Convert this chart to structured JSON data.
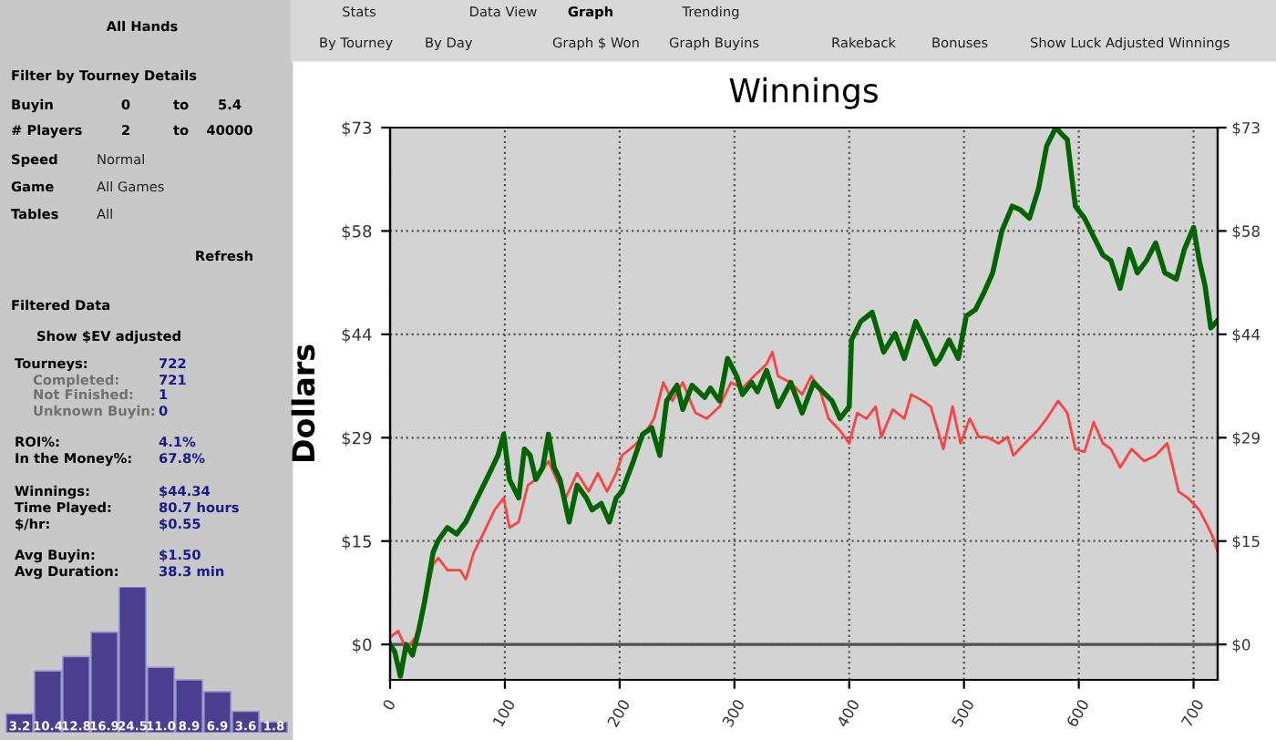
{
  "chart_data": [
    {
      "type": "other",
      "annotations": [
        "All Hands",
        "Filter by Tourney Details",
        "Buyin",
        "0",
        "to",
        "5.4",
        "# Players",
        "2",
        "to",
        "40000",
        "Speed",
        "Normal",
        "Game",
        "All Games",
        "Tables",
        "All",
        "Refresh",
        "Filtered Data",
        "Show $EV adjusted",
        "Tourneys:",
        "722",
        "Completed:",
        "721",
        "Not Finished:",
        "1",
        "Unknown Buyin:",
        "0",
        "ROI%:",
        "4.1%",
        "In the Money%:",
        "67.8%",
        "Winnings:",
        "$44.34",
        "Time Played:",
        "80.7 hours",
        "$/hr:",
        "$0.55",
        "Avg Buyin:",
        "$1.50",
        "Avg Duration:",
        "38.3 min"
      ]
    },
    {
      "type": "other",
      "annotations": [
        "Stats",
        "Data View",
        "Graph",
        "Trending",
        "By Tourney",
        "By Day",
        "Graph $ Won",
        "Graph Buyins",
        "Rakeback",
        "Bonuses",
        "Show Luck Adjusted Winnings"
      ]
    },
    {
      "type": "line",
      "title": "Winnings",
      "ylabel": "Dollars",
      "xlim": [
        0,
        721
      ],
      "ylim": [
        -5,
        73
      ],
      "xticks": [
        0,
        100,
        200,
        300,
        400,
        500,
        600,
        700
      ],
      "yticks": [
        {
          "value": 0,
          "label": "$0"
        },
        {
          "value": 14.6,
          "label": "$15"
        },
        {
          "value": 29.2,
          "label": "$29"
        },
        {
          "value": 43.8,
          "label": "$44"
        },
        {
          "value": 58.4,
          "label": "$58"
        },
        {
          "value": 73,
          "label": "$73"
        }
      ],
      "y2lim": [
        -5,
        73
      ],
      "y2ticks": [
        {
          "value": 0,
          "label": "$0"
        },
        {
          "value": 14.6,
          "label": "$15"
        },
        {
          "value": 29.2,
          "label": "$29"
        },
        {
          "value": 43.8,
          "label": "$44"
        },
        {
          "value": 58.4,
          "label": "$58"
        },
        {
          "value": 73,
          "label": "$73"
        }
      ],
      "grid": true,
      "legend": false,
      "marker": "none",
      "line_style": "solid",
      "ref_lines": [
        {
          "axis": "y",
          "value": 0,
          "color": "#505050",
          "line_style": "solid"
        }
      ],
      "series": [
        {
          "color": "#ff4040",
          "x": [
            0,
            7,
            14,
            22,
            32,
            37.5,
            42,
            50,
            61,
            66,
            73,
            81,
            91,
            99,
            104,
            112,
            120,
            127,
            138,
            145,
            153,
            163,
            173,
            181,
            189,
            197,
            202,
            212,
            220,
            230,
            238,
            246,
            255,
            266,
            276,
            287,
            297,
            307,
            317,
            328,
            333,
            338,
            349,
            359,
            367,
            374,
            382,
            392,
            400,
            407,
            415,
            423,
            428,
            438,
            448,
            454,
            464,
            471,
            482,
            490,
            497,
            505,
            513,
            520,
            530,
            538,
            543,
            553,
            564,
            572,
            582,
            590,
            597,
            605,
            613,
            621,
            628,
            636,
            646,
            657,
            667,
            677,
            682,
            687,
            695,
            705,
            713,
            718,
            721
          ],
          "values": [
            1,
            1.9,
            -0.7,
            1,
            7,
            11.3,
            12.2,
            10.5,
            10.5,
            9.2,
            13,
            15.6,
            19,
            20.7,
            16.5,
            17.3,
            22.5,
            23.3,
            25.9,
            23.3,
            20.7,
            24.2,
            21.6,
            24.2,
            21.6,
            24.2,
            26.7,
            28,
            29.3,
            31.9,
            37,
            34.4,
            37,
            32.7,
            31.9,
            33.6,
            37,
            36.2,
            37.9,
            39.6,
            41.3,
            37.9,
            37,
            35.3,
            37.9,
            36.2,
            31.9,
            30.2,
            28.4,
            32.7,
            31.9,
            33.6,
            29.3,
            33.2,
            31.9,
            35.3,
            34.4,
            33.6,
            27.6,
            33.6,
            28.4,
            31.9,
            29.3,
            29.3,
            28.4,
            29.3,
            26.7,
            28.4,
            30.2,
            31.9,
            34.4,
            32.7,
            27.6,
            27.2,
            31.4,
            28.4,
            27.6,
            25,
            27.6,
            25.9,
            26.7,
            28.4,
            25,
            21.6,
            20.7,
            19,
            16.5,
            14.7,
            13
          ]
        },
        {
          "color": "#006400",
          "x": [
            0,
            4,
            9,
            14,
            19.5,
            25,
            30,
            37.5,
            42,
            50,
            58,
            66,
            76,
            86,
            94,
            99,
            104,
            112,
            117,
            122,
            127,
            133,
            138,
            143,
            148,
            156,
            163,
            171,
            176,
            184,
            191,
            197,
            202,
            212,
            220,
            228,
            235,
            241,
            250,
            255,
            263,
            274,
            279,
            287,
            294,
            302,
            307,
            315,
            320,
            328,
            333,
            338,
            349,
            359,
            369,
            385,
            392,
            400,
            402,
            410,
            420,
            430,
            440,
            448,
            458,
            466,
            475,
            479,
            487,
            495,
            502,
            510,
            518,
            525,
            533,
            542,
            549,
            557,
            565,
            572,
            580,
            585,
            590,
            597,
            605,
            613,
            621,
            628,
            636,
            644,
            651,
            659,
            667,
            675,
            685,
            692,
            700,
            705,
            710,
            715,
            720
          ],
          "values": [
            0,
            -1,
            -4.5,
            0,
            -1.5,
            2,
            6,
            13,
            14.7,
            16.5,
            15.6,
            17.3,
            20.7,
            24,
            26.7,
            29.7,
            23.3,
            20.7,
            27.6,
            26.7,
            23.3,
            25,
            29.7,
            25,
            23.3,
            17.3,
            22.5,
            20.7,
            19,
            19.9,
            17.3,
            20.7,
            21.6,
            25.9,
            29.7,
            30.6,
            26.7,
            34.4,
            36.6,
            33.2,
            36.6,
            34.9,
            36.2,
            34.4,
            40.4,
            37.9,
            35.3,
            37,
            35.7,
            38.7,
            36.2,
            33.6,
            37,
            32.7,
            37,
            34.4,
            31.9,
            33.6,
            43,
            45.6,
            46.9,
            41.3,
            43.9,
            40.4,
            45.6,
            43,
            39.6,
            40.4,
            43,
            40.4,
            46.4,
            47.3,
            49.9,
            52.5,
            58.4,
            61.9,
            61.4,
            60.2,
            64.4,
            70.4,
            73,
            72.1,
            71.3,
            61.9,
            60.2,
            57.6,
            55,
            54.2,
            50.3,
            55.8,
            52.5,
            54.2,
            56.7,
            52.5,
            51.6,
            55.8,
            58.9,
            54.2,
            50.7,
            44.7,
            45.6
          ]
        }
      ]
    },
    {
      "type": "bar",
      "color": "#4b3e8f",
      "value_labels": [
        "3.2",
        "10.4",
        "12.8",
        "16.9",
        "24.5",
        "11.0",
        "8.9",
        "6.9",
        "3.6",
        "1.8"
      ],
      "categories": [
        null,
        null,
        null,
        null,
        null,
        null,
        null,
        null,
        null,
        null
      ],
      "values": [
        3.2,
        10.4,
        12.8,
        16.9,
        24.5,
        11.0,
        8.9,
        6.9,
        3.6,
        1.8
      ]
    }
  ]
}
